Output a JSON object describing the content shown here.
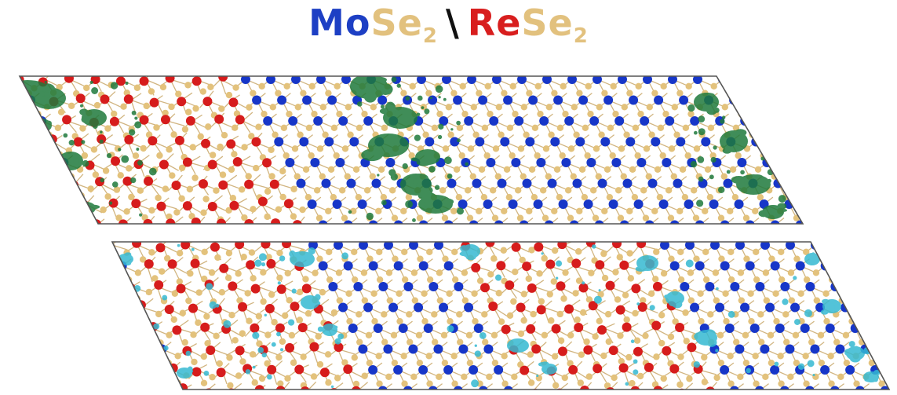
{
  "title": {
    "left_metal": "Mo",
    "left_chalcogen": "Se",
    "left_subscript": "2",
    "separator": "\\",
    "right_metal": "Re",
    "right_chalcogen": "Se",
    "right_subscript": "2"
  },
  "colors": {
    "mo_atom": "#1736c8",
    "re_atom": "#d61c1c",
    "se_atom": "#e3c27c",
    "bond": "#c9a86a",
    "top_density": "#1f7a3c",
    "bottom_density": "#35b9d2",
    "cell_edge": "#555555"
  },
  "panels": [
    {
      "name": "top-supercell",
      "density_color": "top_density"
    },
    {
      "name": "bottom-supercell",
      "density_color": "bottom_density"
    }
  ]
}
